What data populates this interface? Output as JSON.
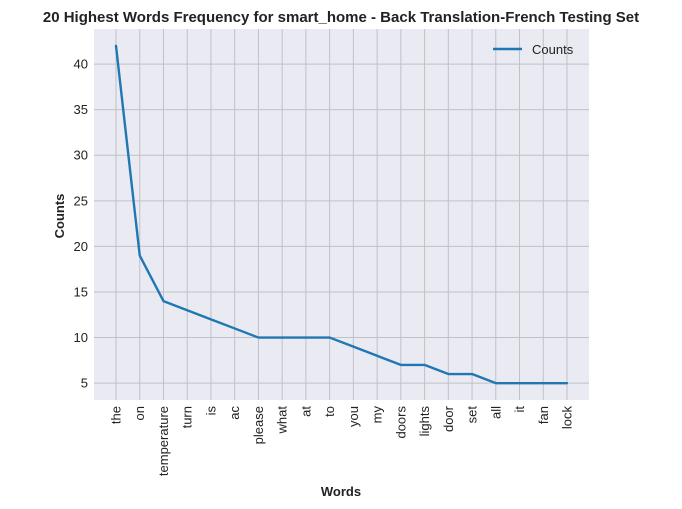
{
  "chart_data": {
    "type": "line",
    "title": "20 Highest Words Frequency for smart_home - Back Translation-French Testing Set",
    "xlabel": "Words",
    "ylabel": "Counts",
    "categories": [
      "the",
      "on",
      "temperature",
      "turn",
      "is",
      "ac",
      "please",
      "what",
      "at",
      "to",
      "you",
      "my",
      "doors",
      "lights",
      "door",
      "set",
      "all",
      "it",
      "fan",
      "lock"
    ],
    "series": [
      {
        "name": "Counts",
        "values": [
          42,
          19,
          14,
          13,
          12,
          11,
          10,
          10,
          10,
          10,
          9,
          8,
          7,
          7,
          6,
          6,
          5,
          5,
          5,
          5
        ]
      }
    ],
    "yticks": [
      5,
      10,
      15,
      20,
      25,
      30,
      35,
      40
    ],
    "ylim": [
      3.15,
      43.85
    ],
    "grid": true,
    "legend_position": "top-right",
    "colors": {
      "line": "#1f77b4",
      "background": "#eaeaf2",
      "grid": "#c0c0c8"
    }
  }
}
